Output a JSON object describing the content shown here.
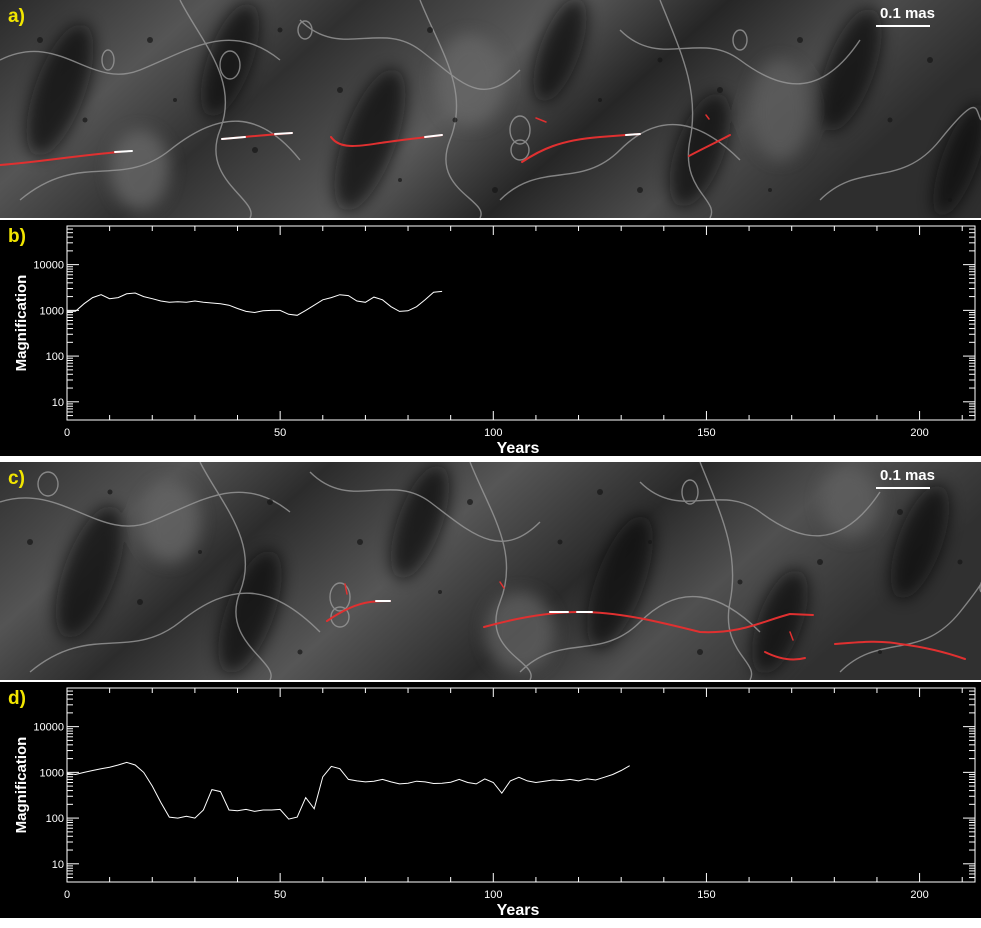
{
  "panels": {
    "a": {
      "letter": "a)",
      "scale_label": "0.1 mas"
    },
    "b": {
      "letter": "b)"
    },
    "c": {
      "letter": "c)",
      "scale_label": "0.1 mas"
    },
    "d": {
      "letter": "d)"
    }
  },
  "colors": {
    "track": "#e03030",
    "track_highlight": "#ffffff",
    "letter": "#f2e600",
    "curve": "#ffffff"
  },
  "chart_data": [
    {
      "type": "line",
      "panel": "b",
      "xlabel": "Years",
      "ylabel": "Magnification",
      "xlim": [
        0,
        213
      ],
      "ylim": [
        4,
        70000
      ],
      "yscale": "log",
      "xticks": [
        0,
        50,
        100,
        150,
        200
      ],
      "yticks": [
        10,
        100,
        1000,
        10000
      ],
      "grid": false,
      "series": [
        {
          "x": [
            0,
            2,
            4,
            6,
            8,
            10,
            12,
            14,
            16,
            18,
            20,
            22,
            24,
            26,
            28,
            30,
            32,
            34,
            36,
            38,
            40,
            42,
            44,
            46,
            48,
            50,
            52,
            54,
            56,
            58,
            60,
            62,
            64,
            66,
            68,
            70,
            72,
            74,
            76,
            78,
            80,
            82,
            84,
            86,
            88
          ],
          "y": [
            950,
            960,
            1400,
            1900,
            2200,
            1800,
            1900,
            2300,
            2400,
            2000,
            1800,
            1600,
            1500,
            1550,
            1500,
            1600,
            1500,
            1450,
            1400,
            1300,
            1100,
            950,
            900,
            980,
            1000,
            1000,
            820,
            780,
            1000,
            1300,
            1700,
            1900,
            2200,
            2100,
            1600,
            1500,
            1950,
            1700,
            1200,
            950,
            980,
            1200,
            1700,
            2500,
            2600
          ]
        }
      ]
    },
    {
      "type": "line",
      "panel": "d",
      "xlabel": "Years",
      "ylabel": "Magnification",
      "xlim": [
        0,
        213
      ],
      "ylim": [
        4,
        70000
      ],
      "yscale": "log",
      "xticks": [
        0,
        50,
        100,
        150,
        200
      ],
      "yticks": [
        10,
        100,
        1000,
        10000
      ],
      "grid": false,
      "series": [
        {
          "x": [
            0,
            2,
            4,
            6,
            8,
            10,
            12,
            14,
            16,
            18,
            20,
            22,
            24,
            26,
            28,
            30,
            32,
            34,
            36,
            38,
            40,
            42,
            44,
            46,
            48,
            50,
            52,
            54,
            56,
            58,
            60,
            62,
            64,
            66,
            68,
            70,
            72,
            74,
            76,
            78,
            80,
            82,
            84,
            86,
            88,
            90,
            92,
            94,
            96,
            98,
            100,
            102,
            104,
            106,
            108,
            110,
            112,
            114,
            116,
            118,
            120,
            122,
            124,
            126,
            128,
            130,
            132
          ],
          "y": [
            950,
            900,
            1000,
            1100,
            1200,
            1300,
            1450,
            1650,
            1450,
            1000,
            500,
            220,
            105,
            100,
            110,
            100,
            150,
            420,
            380,
            150,
            145,
            155,
            140,
            150,
            150,
            155,
            95,
            105,
            280,
            160,
            800,
            1350,
            1200,
            700,
            650,
            620,
            640,
            700,
            620,
            560,
            580,
            640,
            620,
            570,
            580,
            610,
            700,
            600,
            560,
            720,
            600,
            350,
            650,
            780,
            650,
            600,
            640,
            680,
            660,
            700,
            650,
            720,
            680,
            780,
            900,
            1100,
            1400
          ]
        }
      ]
    }
  ]
}
